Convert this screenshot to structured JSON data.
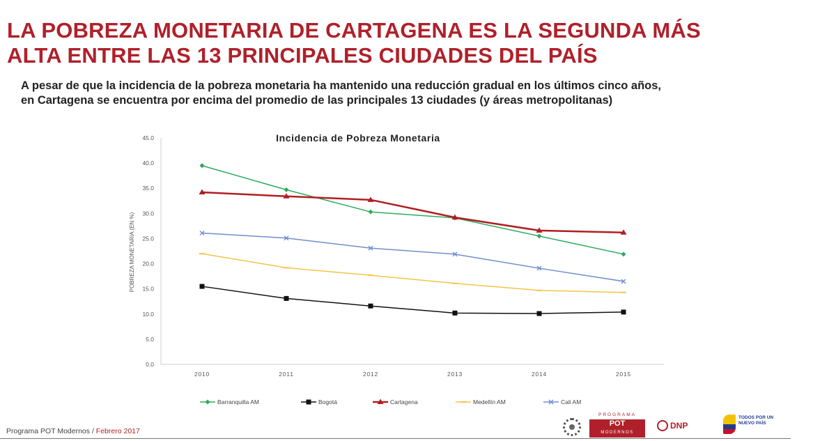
{
  "header": {
    "title_line1": "LA POBREZA MONETARIA DE CARTAGENA ES LA SEGUNDA MÁS",
    "title_line2": "ALTA ENTRE LAS 13 PRINCIPALES CIUDADES DEL PAÍS",
    "subtitle_line1": "A pesar de que la incidencia de la pobreza monetaria ha mantenido una reducción gradual en los últimos cinco años,",
    "subtitle_line2": "en Cartagena se encuentra por encima del promedio de las principales 13 ciudades (y áreas metropolitanas)"
  },
  "footer": {
    "program": "Programa POT Modernos",
    "separator": " / ",
    "date": "Febrero 2017",
    "logo_pot_top": "PROGRAMA",
    "logo_pot_main": "POT",
    "logo_pot_sub": "MODERNOS",
    "logo_dnp": "DNP",
    "logo_todos_1": "TODOS POR UN",
    "logo_todos_2": "NUEVO PAÍS"
  },
  "chart_data": {
    "type": "line",
    "title": "Incidencia de Pobreza Monetaria",
    "xlabel": "",
    "ylabel": "POBREZA MONETARIA (EN %)",
    "ylim": [
      0,
      45
    ],
    "yticks": [
      "0.0",
      "5.0",
      "10.0",
      "15.0",
      "20.0",
      "25.0",
      "30.0",
      "35.0",
      "40.0",
      "45.0"
    ],
    "x": [
      "2010",
      "2011",
      "2012",
      "2013",
      "2014",
      "2015"
    ],
    "grid": false,
    "legend": "bottom",
    "series": [
      {
        "name": "Barranquilla AM",
        "color": "#2eaa5f",
        "marker": "diamond",
        "width": 1.5,
        "values": [
          39.5,
          34.7,
          30.3,
          29.1,
          25.5,
          21.9
        ]
      },
      {
        "name": "Bogotá",
        "color": "#111111",
        "marker": "square",
        "width": 1.5,
        "values": [
          15.5,
          13.1,
          11.6,
          10.2,
          10.1,
          10.4
        ]
      },
      {
        "name": "Cartagena",
        "color": "#b01e22",
        "marker": "triangle",
        "width": 2.5,
        "values": [
          34.2,
          33.4,
          32.7,
          29.2,
          26.6,
          26.2
        ]
      },
      {
        "name": "Medellín AM",
        "color": "#f5c447",
        "marker": "dash",
        "width": 1.5,
        "values": [
          22.0,
          19.2,
          17.7,
          16.1,
          14.7,
          14.3
        ]
      },
      {
        "name": "Cali AM",
        "color": "#6f8fd0",
        "marker": "x",
        "width": 1.5,
        "values": [
          26.1,
          25.1,
          23.1,
          21.9,
          19.1,
          16.5
        ]
      }
    ]
  }
}
